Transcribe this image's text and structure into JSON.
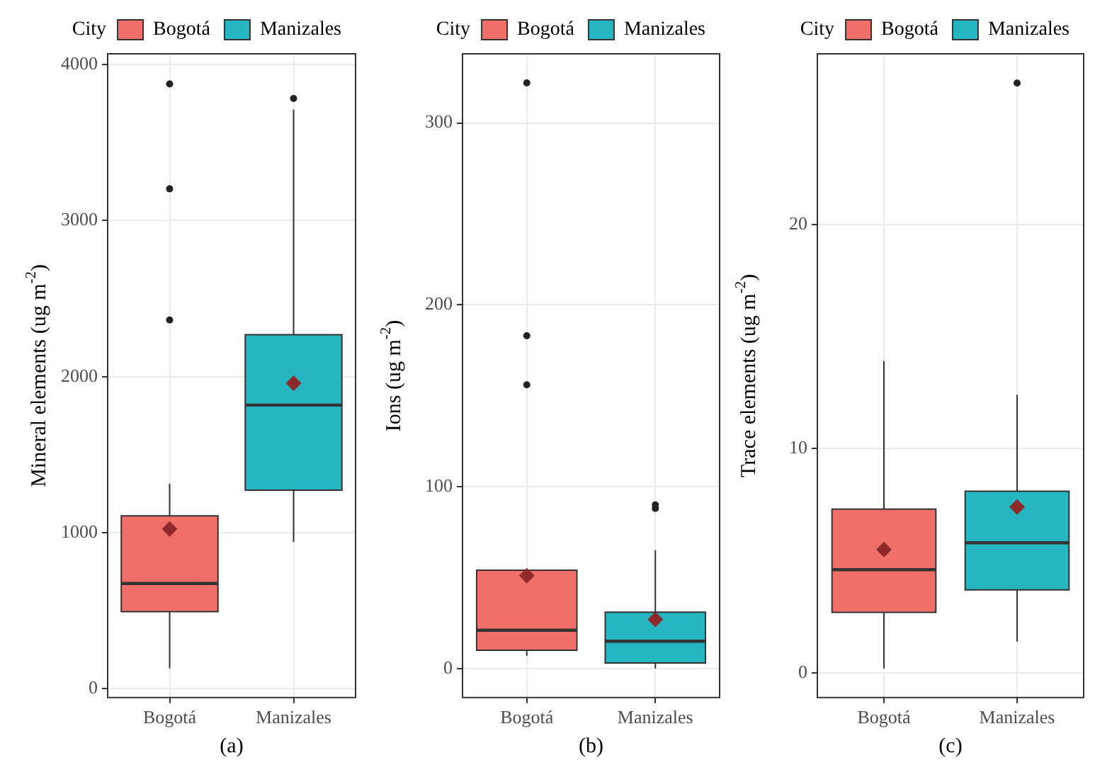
{
  "chart_data": [
    {
      "type": "box",
      "categories": [
        "Bogotá",
        "Manizales"
      ],
      "xlabel": "(a)",
      "ylabel": "Mineral elements (ug m$^{-2}$)",
      "legend_title": "City",
      "legend": "top",
      "grid": true,
      "ylim": [
        -56,
        4068
      ],
      "yticks": [
        0,
        1000,
        2000,
        3000,
        4000
      ],
      "series": [
        {
          "name": "Bogotá",
          "color": "#f07069",
          "boxes": [
            {
              "low": 131,
              "q1": 495,
              "median": 675,
              "q3": 1108,
              "high": 1314,
              "mean": 1024,
              "outliers": [
                2363,
                3203,
                3875
              ]
            },
            null
          ]
        },
        {
          "name": "Manizales",
          "color": "#25b6c1",
          "boxes": [
            null,
            {
              "low": 940,
              "q1": 1273,
              "median": 1818,
              "q3": 2269,
              "high": 3711,
              "mean": 1958,
              "outliers": [
                3782
              ]
            }
          ]
        }
      ]
    },
    {
      "type": "box",
      "categories": [
        "Bogotá",
        "Manizales"
      ],
      "xlabel": "(b)",
      "ylabel": "Ions (ug m$^{-2}$)",
      "legend_title": "City",
      "legend": "top",
      "grid": true,
      "ylim": [
        -16,
        338
      ],
      "yticks": [
        0,
        100,
        200,
        300
      ],
      "series": [
        {
          "name": "Bogotá",
          "color": "#f07069",
          "boxes": [
            {
              "low": 7,
              "q1": 10,
              "median": 21,
              "q3": 54,
              "high": 54,
              "mean": 51,
              "outliers": [
                156,
                183,
                322
              ]
            },
            null
          ]
        },
        {
          "name": "Manizales",
          "color": "#25b6c1",
          "boxes": [
            null,
            {
              "low": 0,
              "q1": 3,
              "median": 15,
              "q3": 31,
              "high": 65,
              "mean": 27,
              "outliers": [
                88,
                90
              ]
            }
          ]
        }
      ]
    },
    {
      "type": "box",
      "categories": [
        "Bogotá",
        "Manizales"
      ],
      "xlabel": "(c)",
      "ylabel": "Trace elements (ug m$^{-2}$)",
      "legend_title": "City",
      "legend": "top",
      "grid": true,
      "ylim": [
        -1.1,
        27.6
      ],
      "yticks": [
        0,
        10,
        20
      ],
      "series": [
        {
          "name": "Bogotá",
          "color": "#f07069",
          "boxes": [
            {
              "low": 0.2,
              "q1": 2.7,
              "median": 4.6,
              "q3": 7.3,
              "high": 13.9,
              "mean": 5.5
            },
            null
          ]
        },
        {
          "name": "Manizales",
          "color": "#25b6c1",
          "boxes": [
            null,
            {
              "low": 1.4,
              "q1": 3.7,
              "median": 5.8,
              "q3": 8.1,
              "high": 12.4,
              "mean": 7.4,
              "outliers": [
                26.3
              ]
            }
          ]
        }
      ]
    }
  ]
}
